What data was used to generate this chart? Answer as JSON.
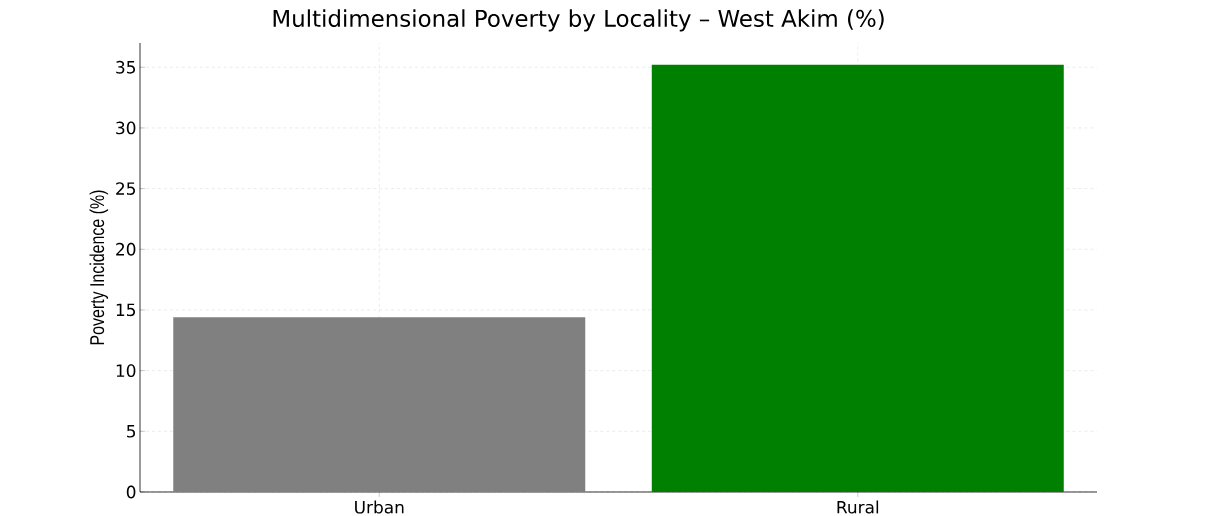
{
  "chart_data": {
    "type": "bar",
    "title": "Multidimensional Poverty by Locality – West Akim (%)",
    "ylabel": "Poverty Incidence (%)",
    "categories": [
      "Urban",
      "Rural"
    ],
    "values": [
      14.4,
      35.2
    ],
    "colors": [
      "#808080",
      "#008000"
    ],
    "ylim": [
      0,
      37
    ],
    "yticks": [
      0,
      5,
      10,
      15,
      20,
      25,
      30,
      35
    ],
    "grid": true
  }
}
